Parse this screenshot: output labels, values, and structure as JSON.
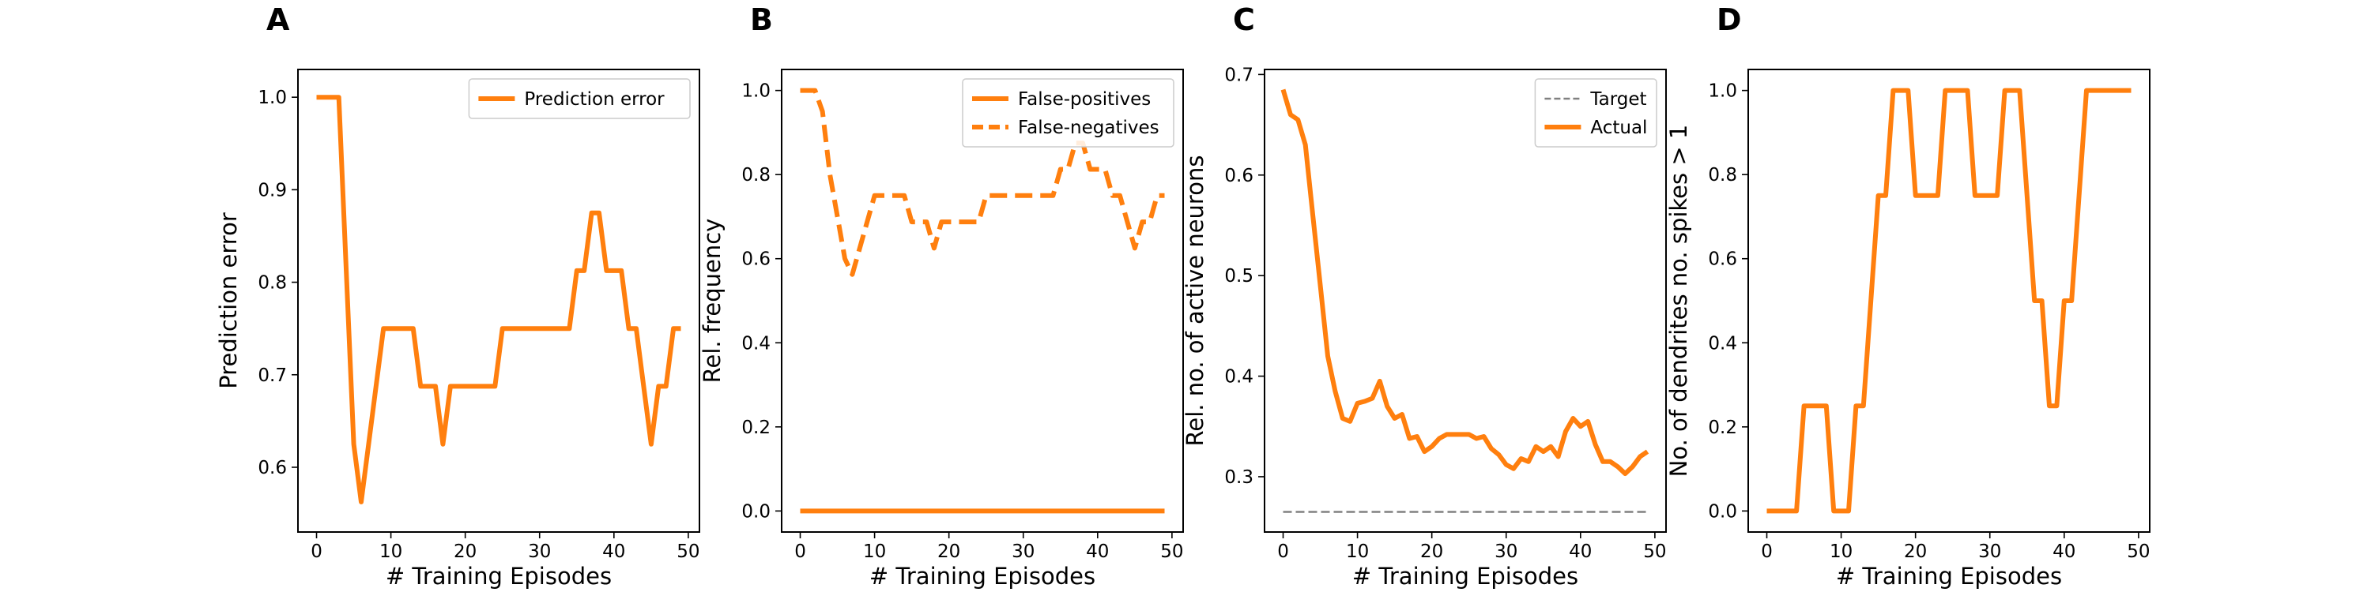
{
  "figure": {
    "series_color": "#ff7f0e",
    "target_color": "#808080"
  },
  "chart_data": [
    {
      "panel_label": "A",
      "type": "line",
      "title": "",
      "xlabel": "# Training Episodes",
      "ylabel": "Prediction error",
      "xlim": [
        -2.5,
        51.5
      ],
      "ylim": [
        0.53,
        1.03
      ],
      "xticks": [
        0,
        10,
        20,
        30,
        40,
        50
      ],
      "yticks": [
        0.6,
        0.7,
        0.8,
        0.9,
        1.0
      ],
      "ytick_labels": [
        "0.6",
        "0.7",
        "0.8",
        "0.9",
        "1.0"
      ],
      "grid": false,
      "legend": {
        "placement": "top-right"
      },
      "series": [
        {
          "name": "Prediction error",
          "style": "solid",
          "x": [
            0,
            1,
            2,
            3,
            4,
            5,
            6,
            7,
            8,
            9,
            10,
            11,
            12,
            13,
            14,
            15,
            16,
            17,
            18,
            19,
            20,
            21,
            22,
            23,
            24,
            25,
            26,
            27,
            28,
            29,
            30,
            31,
            32,
            33,
            34,
            35,
            36,
            37,
            38,
            39,
            40,
            41,
            42,
            43,
            44,
            45,
            46,
            47,
            48,
            49
          ],
          "y": [
            1.0,
            1.0,
            1.0,
            1.0,
            0.8125,
            0.625,
            0.5625,
            0.625,
            0.6875,
            0.75,
            0.75,
            0.75,
            0.75,
            0.75,
            0.6875,
            0.6875,
            0.6875,
            0.625,
            0.6875,
            0.6875,
            0.6875,
            0.6875,
            0.6875,
            0.6875,
            0.6875,
            0.75,
            0.75,
            0.75,
            0.75,
            0.75,
            0.75,
            0.75,
            0.75,
            0.75,
            0.75,
            0.8125,
            0.8125,
            0.875,
            0.875,
            0.8125,
            0.8125,
            0.8125,
            0.75,
            0.75,
            0.6875,
            0.625,
            0.6875,
            0.6875,
            0.75,
            0.75
          ]
        }
      ]
    },
    {
      "panel_label": "B",
      "type": "line",
      "title": "",
      "xlabel": "# Training Episodes",
      "ylabel": "Rel. frequency",
      "xlim": [
        -2.5,
        51.5
      ],
      "ylim": [
        -0.05,
        1.05
      ],
      "xticks": [
        0,
        10,
        20,
        30,
        40,
        50
      ],
      "yticks": [
        0.0,
        0.2,
        0.4,
        0.6,
        0.8,
        1.0
      ],
      "ytick_labels": [
        "0.0",
        "0.2",
        "0.4",
        "0.6",
        "0.8",
        "1.0"
      ],
      "grid": false,
      "legend": {
        "placement": "top-right"
      },
      "series": [
        {
          "name": "False-positives",
          "style": "solid",
          "x": [
            0,
            49
          ],
          "y": [
            0.0,
            0.0
          ]
        },
        {
          "name": "False-negatives",
          "style": "dashed",
          "x": [
            0,
            1,
            2,
            3,
            4,
            5,
            6,
            7,
            8,
            9,
            10,
            11,
            12,
            13,
            14,
            15,
            16,
            17,
            18,
            19,
            20,
            21,
            22,
            23,
            24,
            25,
            26,
            27,
            28,
            29,
            30,
            31,
            32,
            33,
            34,
            35,
            36,
            37,
            38,
            39,
            40,
            41,
            42,
            43,
            44,
            45,
            46,
            47,
            48,
            49
          ],
          "y": [
            1.0,
            1.0,
            1.0,
            0.95,
            0.8,
            0.7,
            0.6,
            0.5625,
            0.625,
            0.6875,
            0.75,
            0.75,
            0.75,
            0.75,
            0.75,
            0.6875,
            0.6875,
            0.6875,
            0.625,
            0.6875,
            0.6875,
            0.6875,
            0.6875,
            0.6875,
            0.6875,
            0.75,
            0.75,
            0.75,
            0.75,
            0.75,
            0.75,
            0.75,
            0.75,
            0.75,
            0.75,
            0.8125,
            0.8125,
            0.875,
            0.875,
            0.8125,
            0.8125,
            0.8125,
            0.75,
            0.75,
            0.6875,
            0.625,
            0.6875,
            0.6875,
            0.75,
            0.75
          ]
        }
      ]
    },
    {
      "panel_label": "C",
      "type": "line",
      "title": "",
      "xlabel": "# Training Episodes",
      "ylabel": "Rel. no. of active neurons",
      "xlim": [
        -2.5,
        51.5
      ],
      "ylim": [
        0.245,
        0.705
      ],
      "xticks": [
        0,
        10,
        20,
        30,
        40,
        50
      ],
      "yticks": [
        0.3,
        0.4,
        0.5,
        0.6,
        0.7
      ],
      "ytick_labels": [
        "0.3",
        "0.4",
        "0.5",
        "0.6",
        "0.7"
      ],
      "grid": false,
      "legend": {
        "placement": "top-right"
      },
      "series": [
        {
          "name": "Target",
          "style": "dashed-thin",
          "x": [
            0,
            49
          ],
          "y": [
            0.265,
            0.265
          ]
        },
        {
          "name": "Actual",
          "style": "solid",
          "x": [
            0,
            1,
            2,
            3,
            4,
            5,
            6,
            7,
            8,
            9,
            10,
            11,
            12,
            13,
            14,
            15,
            16,
            17,
            18,
            19,
            20,
            21,
            22,
            23,
            24,
            25,
            26,
            27,
            28,
            29,
            30,
            31,
            32,
            33,
            34,
            35,
            36,
            37,
            38,
            39,
            40,
            41,
            42,
            43,
            44,
            45,
            46,
            47,
            48,
            49
          ],
          "y": [
            0.685,
            0.66,
            0.655,
            0.63,
            0.56,
            0.49,
            0.42,
            0.385,
            0.358,
            0.355,
            0.373,
            0.375,
            0.378,
            0.395,
            0.37,
            0.358,
            0.362,
            0.338,
            0.34,
            0.325,
            0.33,
            0.338,
            0.342,
            0.342,
            0.342,
            0.342,
            0.338,
            0.34,
            0.328,
            0.322,
            0.312,
            0.308,
            0.318,
            0.315,
            0.33,
            0.325,
            0.33,
            0.32,
            0.345,
            0.358,
            0.35,
            0.355,
            0.332,
            0.315,
            0.315,
            0.31,
            0.303,
            0.31,
            0.32,
            0.325
          ]
        }
      ]
    },
    {
      "panel_label": "D",
      "type": "line",
      "title": "",
      "xlabel": "# Training Episodes",
      "ylabel": "No. of dendrites no. spikes > 1",
      "xlim": [
        -2.5,
        51.5
      ],
      "ylim": [
        -0.05,
        1.05
      ],
      "xticks": [
        0,
        10,
        20,
        30,
        40,
        50
      ],
      "yticks": [
        0.0,
        0.2,
        0.4,
        0.6,
        0.8,
        1.0
      ],
      "ytick_labels": [
        "0.0",
        "0.2",
        "0.4",
        "0.6",
        "0.8",
        "1.0"
      ],
      "grid": false,
      "legend": null,
      "series": [
        {
          "name": "",
          "style": "solid",
          "x": [
            0,
            1,
            2,
            3,
            4,
            5,
            6,
            7,
            8,
            9,
            10,
            11,
            12,
            13,
            14,
            15,
            16,
            17,
            18,
            19,
            20,
            21,
            22,
            23,
            24,
            25,
            26,
            27,
            28,
            29,
            30,
            31,
            32,
            33,
            34,
            35,
            36,
            37,
            38,
            39,
            40,
            41,
            42,
            43,
            44,
            45,
            46,
            47,
            48,
            49
          ],
          "y": [
            0.0,
            0.0,
            0.0,
            0.0,
            0.0,
            0.25,
            0.25,
            0.25,
            0.25,
            0.0,
            0.0,
            0.0,
            0.25,
            0.25,
            0.5,
            0.75,
            0.75,
            1.0,
            1.0,
            1.0,
            0.75,
            0.75,
            0.75,
            0.75,
            1.0,
            1.0,
            1.0,
            1.0,
            0.75,
            0.75,
            0.75,
            0.75,
            1.0,
            1.0,
            1.0,
            0.75,
            0.5,
            0.5,
            0.25,
            0.25,
            0.5,
            0.5,
            0.75,
            1.0,
            1.0,
            1.0,
            1.0,
            1.0,
            1.0,
            1.0
          ]
        }
      ]
    }
  ]
}
